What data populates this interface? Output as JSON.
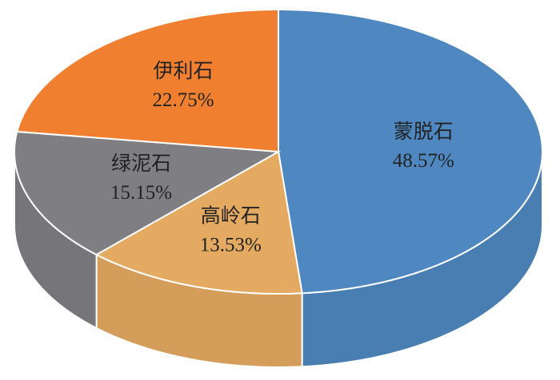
{
  "chart_data": {
    "type": "pie3d",
    "categories": [
      "蒙脱石",
      "高岭石",
      "绿泥石",
      "伊利石"
    ],
    "values": [
      48.57,
      13.53,
      15.15,
      22.75
    ],
    "value_labels": [
      "48.57%",
      "13.53%",
      "15.15%",
      "22.75%"
    ],
    "colors": [
      "#4f88c1",
      "#e4aa61",
      "#7f7f83",
      "#f07f30"
    ]
  }
}
